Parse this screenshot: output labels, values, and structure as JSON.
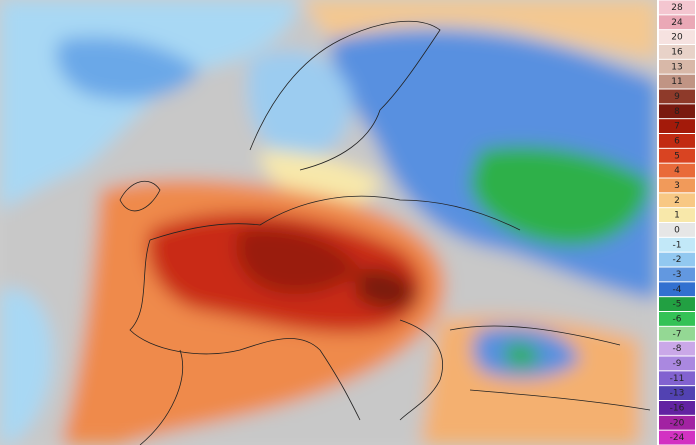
{
  "legend": {
    "ticks": [
      28,
      24,
      20,
      16,
      13,
      11,
      9,
      8,
      7,
      6,
      5,
      4,
      3,
      2,
      1,
      0,
      -1,
      -2,
      -3,
      -4,
      -5,
      -6,
      -7,
      -8,
      -9,
      -11,
      -13,
      -16,
      -20,
      -24
    ],
    "colors": [
      "#f4c6d0",
      "#eaa8b6",
      "#f6e2e0",
      "#e8d2c8",
      "#d8b8a8",
      "#c09484",
      "#8e3a2a",
      "#7a1a10",
      "#a31a0a",
      "#c22a12",
      "#d94422",
      "#e96a3a",
      "#f19a5a",
      "#f8c884",
      "#f8e8aa",
      "#e6e6e6",
      "#c2e8f8",
      "#92c8f0",
      "#6298e0",
      "#3270d0",
      "#22a042",
      "#34c256",
      "#94d894",
      "#caa8e8",
      "#aa88e0",
      "#8262d0",
      "#5242b2",
      "#6222a2",
      "#a222a2",
      "#d232c2"
    ]
  }
}
